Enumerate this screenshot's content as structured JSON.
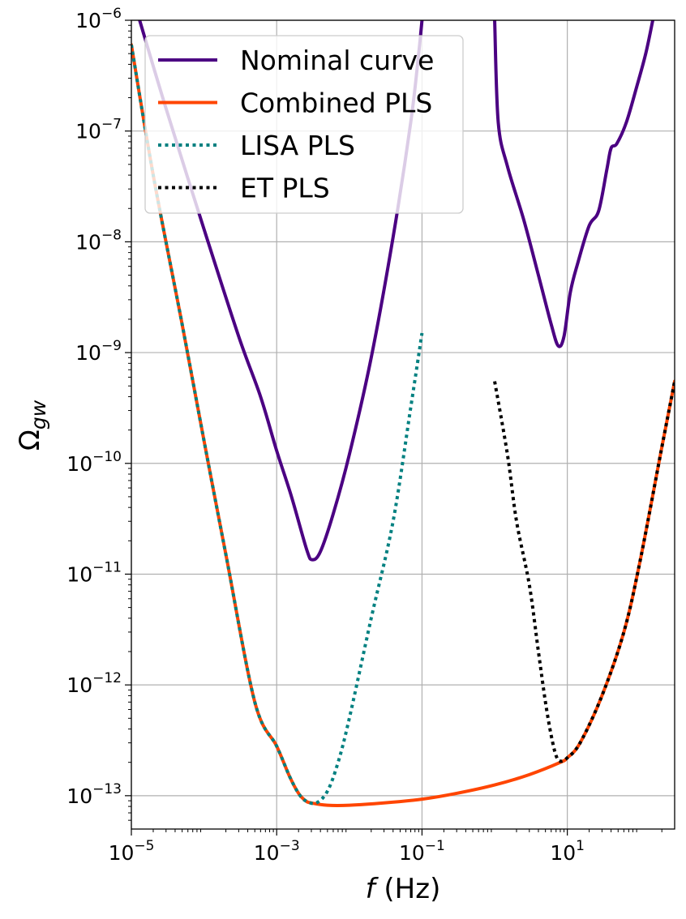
{
  "chart_data": {
    "type": "line",
    "xscale": "log",
    "yscale": "log",
    "xlim": [
      1e-05,
      300
    ],
    "ylim": [
      5e-14,
      1e-06
    ],
    "xlabel": {
      "var": "f",
      "unit": " (Hz)"
    },
    "ylabel": {
      "base": "Ω",
      "sub": "gw"
    },
    "grid": true,
    "legend_position": "upper-left",
    "x_ticks": [
      {
        "value": 1e-05,
        "base": "10",
        "exp": "−5"
      },
      {
        "value": 0.001,
        "base": "10",
        "exp": "−3"
      },
      {
        "value": 0.1,
        "base": "10",
        "exp": "−1"
      },
      {
        "value": 10,
        "base": "10",
        "exp": "1"
      }
    ],
    "y_ticks": [
      {
        "value": 1e-13,
        "base": "10",
        "exp": "−13"
      },
      {
        "value": 1e-12,
        "base": "10",
        "exp": "−12"
      },
      {
        "value": 1e-11,
        "base": "10",
        "exp": "−11"
      },
      {
        "value": 1e-10,
        "base": "10",
        "exp": "−10"
      },
      {
        "value": 1e-09,
        "base": "10",
        "exp": "−9"
      },
      {
        "value": 1e-08,
        "base": "10",
        "exp": "−8"
      },
      {
        "value": 1e-07,
        "base": "10",
        "exp": "−7"
      },
      {
        "value": 1e-06,
        "base": "10",
        "exp": "−6"
      }
    ],
    "series": [
      {
        "name": "Nominal curve",
        "color": "#4b0082",
        "dash": "solid",
        "segments": [
          [
            [
              1.3e-05,
              1e-06
            ],
            [
              3e-05,
              1.6e-07
            ],
            [
              0.0001,
              1.3e-08
            ],
            [
              0.0003,
              1.4e-09
            ],
            [
              0.0006,
              4e-10
            ],
            [
              0.001,
              1.3e-10
            ],
            [
              0.0016,
              5e-11
            ],
            [
              0.0026,
              1.65e-11
            ],
            [
              0.0031,
              1.35e-11
            ],
            [
              0.004,
              1.6e-11
            ],
            [
              0.006,
              3.5e-11
            ],
            [
              0.01,
              1.2e-10
            ],
            [
              0.02,
              9e-10
            ],
            [
              0.04,
              1.1e-08
            ],
            [
              0.07,
              1.2e-07
            ],
            [
              0.09,
              5e-07
            ],
            [
              0.1,
              1e-06
            ]
          ],
          [
            [
              1.0,
              1e-06
            ],
            [
              1.12,
              1.2e-07
            ],
            [
              1.5,
              4.8e-08
            ],
            [
              2.5,
              1.6e-08
            ],
            [
              4.0,
              5e-09
            ],
            [
              6.0,
              1.8e-09
            ],
            [
              7.5,
              1.15e-09
            ],
            [
              9.0,
              1.4e-09
            ],
            [
              11.0,
              3.5e-09
            ],
            [
              14.0,
              6.5e-09
            ],
            [
              20.0,
              1.4e-08
            ],
            [
              27.0,
              1.9e-08
            ],
            [
              35.0,
              4.5e-08
            ],
            [
              40.0,
              7e-08
            ],
            [
              48.0,
              7.7e-08
            ],
            [
              65.0,
              1.2e-07
            ],
            [
              90.0,
              2.5e-07
            ],
            [
              120.0,
              5e-07
            ],
            [
              150.0,
              1e-06
            ]
          ]
        ]
      },
      {
        "name": "Combined PLS",
        "color": "#ff4500",
        "dash": "solid",
        "segments": [
          [
            [
              1e-05,
              6e-07
            ],
            [
              2e-05,
              4e-08
            ],
            [
              5e-05,
              1.8e-09
            ],
            [
              0.0001,
              1.6e-10
            ],
            [
              0.0002,
              1.5e-11
            ],
            [
              0.0005,
              7e-13
            ],
            [
              0.001,
              2.8e-13
            ],
            [
              0.0015,
              1.5e-13
            ],
            [
              0.002,
              1.05e-13
            ],
            [
              0.0025,
              9e-14
            ],
            [
              0.003,
              8.6e-14
            ],
            [
              0.005,
              8.2e-14
            ],
            [
              0.01,
              8.2e-14
            ],
            [
              0.03,
              8.6e-14
            ],
            [
              0.1,
              9.3e-14
            ],
            [
              0.3,
              1.05e-13
            ],
            [
              1.0,
              1.25e-13
            ],
            [
              3.0,
              1.55e-13
            ],
            [
              8.0,
              2e-13
            ],
            [
              10.0,
              2.2e-13
            ],
            [
              15.0,
              3e-13
            ],
            [
              30.0,
              8e-13
            ],
            [
              60.0,
              3e-12
            ],
            [
              100.0,
              1.3e-11
            ],
            [
              200.0,
              1.4e-10
            ],
            [
              300.0,
              5.5e-10
            ]
          ]
        ]
      },
      {
        "name": "LISA PLS",
        "color": "#008080",
        "dash": "dotted",
        "segments": [
          [
            [
              1e-05,
              6e-07
            ],
            [
              2e-05,
              4e-08
            ],
            [
              5e-05,
              1.8e-09
            ],
            [
              0.0001,
              1.6e-10
            ],
            [
              0.0002,
              1.5e-11
            ],
            [
              0.0005,
              7e-13
            ],
            [
              0.001,
              2.8e-13
            ],
            [
              0.0015,
              1.5e-13
            ],
            [
              0.002,
              1.05e-13
            ],
            [
              0.0025,
              9e-14
            ],
            [
              0.0035,
              8.6e-14
            ],
            [
              0.005,
              1.1e-13
            ],
            [
              0.007,
              2e-13
            ],
            [
              0.01,
              5e-13
            ],
            [
              0.02,
              4e-12
            ],
            [
              0.04,
              3e-11
            ],
            [
              0.07,
              3.2e-10
            ],
            [
              0.1,
              1.5e-09
            ]
          ]
        ]
      },
      {
        "name": "ET PLS",
        "color": "#000000",
        "dash": "dotted",
        "segments": [
          [
            [
              1.0,
              5.5e-10
            ],
            [
              1.5,
              1.2e-10
            ],
            [
              2.0,
              3e-11
            ],
            [
              3.0,
              8e-12
            ],
            [
              4.0,
              2e-12
            ],
            [
              5.0,
              7e-13
            ],
            [
              6.0,
              3.5e-13
            ],
            [
              7.0,
              2.3e-13
            ],
            [
              8.0,
              2.05e-13
            ],
            [
              10.0,
              2.2e-13
            ],
            [
              15.0,
              3e-13
            ],
            [
              30.0,
              8e-13
            ],
            [
              60.0,
              3e-12
            ],
            [
              100.0,
              1.3e-11
            ],
            [
              200.0,
              1.4e-10
            ],
            [
              300.0,
              5.5e-10
            ]
          ]
        ]
      }
    ]
  }
}
